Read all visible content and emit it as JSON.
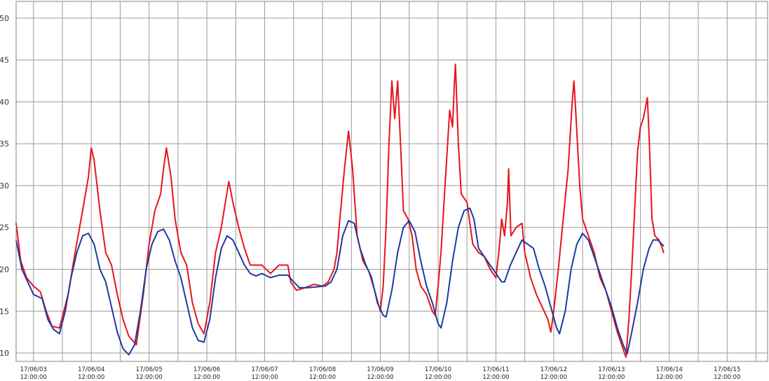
{
  "chart_data": {
    "type": "line",
    "title": "",
    "xlabel": "",
    "ylabel": "",
    "ylim": [
      9,
      52
    ],
    "grid": true,
    "y_ticks": [
      10,
      15,
      20,
      25,
      30,
      35,
      40,
      45,
      50
    ],
    "x_range": [
      -0.3,
      12.7
    ],
    "x_ticks": [
      {
        "date": "17/06/03",
        "time": "12:00:00"
      },
      {
        "date": "17/06/04",
        "time": "12:00:00"
      },
      {
        "date": "17/06/05",
        "time": "12:00:00"
      },
      {
        "date": "17/06/06",
        "time": "12:00:00"
      },
      {
        "date": "17/06/07",
        "time": "12:00:00"
      },
      {
        "date": "17/06/08",
        "time": "12:00:00"
      },
      {
        "date": "17/06/09",
        "time": "12:00:00"
      },
      {
        "date": "17/06/10",
        "time": "12:00:00"
      },
      {
        "date": "17/06/11",
        "time": "12:00:00"
      },
      {
        "date": "17/06/12",
        "time": "12:00:00"
      },
      {
        "date": "17/06/13",
        "time": "12:00:00"
      },
      {
        "date": "17/06/14",
        "time": "12:00:00"
      },
      {
        "date": "17/06/15",
        "time": "12:00:00"
      }
    ],
    "series": [
      {
        "name": "red",
        "color": "#e8141c",
        "points": [
          [
            -0.3,
            25.5
          ],
          [
            -0.22,
            21
          ],
          [
            -0.12,
            19
          ],
          [
            0.0,
            18
          ],
          [
            0.12,
            17.3
          ],
          [
            0.22,
            15
          ],
          [
            0.32,
            13.2
          ],
          [
            0.45,
            13
          ],
          [
            0.6,
            17
          ],
          [
            0.72,
            22
          ],
          [
            0.85,
            27
          ],
          [
            0.95,
            31
          ],
          [
            1.0,
            34.5
          ],
          [
            1.05,
            33
          ],
          [
            1.15,
            27
          ],
          [
            1.25,
            22
          ],
          [
            1.35,
            20.5
          ],
          [
            1.45,
            17
          ],
          [
            1.55,
            14
          ],
          [
            1.65,
            12
          ],
          [
            1.78,
            11
          ],
          [
            1.9,
            17
          ],
          [
            2.0,
            23
          ],
          [
            2.1,
            27
          ],
          [
            2.2,
            29
          ],
          [
            2.25,
            32
          ],
          [
            2.3,
            34.5
          ],
          [
            2.38,
            31
          ],
          [
            2.45,
            26
          ],
          [
            2.55,
            22
          ],
          [
            2.65,
            20.5
          ],
          [
            2.75,
            16
          ],
          [
            2.85,
            13.5
          ],
          [
            2.95,
            12.3
          ],
          [
            3.05,
            16
          ],
          [
            3.15,
            22
          ],
          [
            3.25,
            25
          ],
          [
            3.32,
            28
          ],
          [
            3.38,
            30.5
          ],
          [
            3.45,
            28
          ],
          [
            3.55,
            25
          ],
          [
            3.65,
            22.5
          ],
          [
            3.75,
            20.5
          ],
          [
            3.85,
            20.5
          ],
          [
            3.95,
            20.5
          ],
          [
            4.1,
            19.5
          ],
          [
            4.25,
            20.5
          ],
          [
            4.4,
            20.5
          ],
          [
            4.45,
            18.5
          ],
          [
            4.55,
            17.5
          ],
          [
            4.7,
            17.8
          ],
          [
            4.85,
            18.2
          ],
          [
            5.0,
            18
          ],
          [
            5.1,
            18.5
          ],
          [
            5.2,
            20
          ],
          [
            5.25,
            22
          ],
          [
            5.3,
            26
          ],
          [
            5.38,
            32
          ],
          [
            5.45,
            36.5
          ],
          [
            5.52,
            32
          ],
          [
            5.6,
            24
          ],
          [
            5.7,
            21
          ],
          [
            5.8,
            19.8
          ],
          [
            5.9,
            17.5
          ],
          [
            6.0,
            15
          ],
          [
            6.05,
            18
          ],
          [
            6.1,
            25
          ],
          [
            6.15,
            35
          ],
          [
            6.2,
            42.5
          ],
          [
            6.25,
            38
          ],
          [
            6.3,
            42.5
          ],
          [
            6.35,
            35
          ],
          [
            6.4,
            27
          ],
          [
            6.48,
            26
          ],
          [
            6.55,
            24
          ],
          [
            6.62,
            20
          ],
          [
            6.7,
            18
          ],
          [
            6.8,
            17
          ],
          [
            6.9,
            15
          ],
          [
            6.95,
            14.5
          ],
          [
            7.0,
            18
          ],
          [
            7.05,
            22
          ],
          [
            7.12,
            30
          ],
          [
            7.2,
            39
          ],
          [
            7.25,
            37
          ],
          [
            7.28,
            42
          ],
          [
            7.3,
            44.5
          ],
          [
            7.35,
            35
          ],
          [
            7.4,
            29
          ],
          [
            7.5,
            28
          ],
          [
            7.6,
            23
          ],
          [
            7.7,
            22
          ],
          [
            7.8,
            21.5
          ],
          [
            7.9,
            20
          ],
          [
            8.0,
            19
          ],
          [
            8.05,
            22
          ],
          [
            8.1,
            26
          ],
          [
            8.15,
            24
          ],
          [
            8.2,
            28
          ],
          [
            8.22,
            32
          ],
          [
            8.26,
            24
          ],
          [
            8.35,
            25
          ],
          [
            8.45,
            25.5
          ],
          [
            8.5,
            22
          ],
          [
            8.6,
            19
          ],
          [
            8.7,
            17
          ],
          [
            8.8,
            15.5
          ],
          [
            8.9,
            14
          ],
          [
            8.95,
            12.5
          ],
          [
            9.0,
            15
          ],
          [
            9.08,
            20
          ],
          [
            9.15,
            25
          ],
          [
            9.25,
            32
          ],
          [
            9.32,
            40
          ],
          [
            9.35,
            42.5
          ],
          [
            9.38,
            39
          ],
          [
            9.45,
            30
          ],
          [
            9.5,
            26
          ],
          [
            9.6,
            24
          ],
          [
            9.7,
            22
          ],
          [
            9.8,
            19
          ],
          [
            9.9,
            17.5
          ],
          [
            10.0,
            15
          ],
          [
            10.1,
            12.5
          ],
          [
            10.2,
            10.5
          ],
          [
            10.25,
            9.5
          ],
          [
            10.3,
            14
          ],
          [
            10.35,
            20
          ],
          [
            10.4,
            27
          ],
          [
            10.45,
            34
          ],
          [
            10.5,
            37
          ],
          [
            10.55,
            38
          ],
          [
            10.62,
            40.5
          ],
          [
            10.65,
            36
          ],
          [
            10.7,
            26
          ],
          [
            10.75,
            24
          ],
          [
            10.82,
            23.5
          ],
          [
            10.88,
            22.5
          ],
          [
            10.9,
            22
          ]
        ]
      },
      {
        "name": "blue",
        "color": "#1e3a9e",
        "points": [
          [
            -0.3,
            23.5
          ],
          [
            -0.2,
            20
          ],
          [
            -0.1,
            18.5
          ],
          [
            0.0,
            17
          ],
          [
            0.15,
            16.5
          ],
          [
            0.25,
            14
          ],
          [
            0.35,
            12.8
          ],
          [
            0.45,
            12.3
          ],
          [
            0.55,
            15
          ],
          [
            0.65,
            19
          ],
          [
            0.75,
            22
          ],
          [
            0.85,
            24
          ],
          [
            0.95,
            24.3
          ],
          [
            1.05,
            23
          ],
          [
            1.15,
            20
          ],
          [
            1.25,
            18.5
          ],
          [
            1.35,
            15.5
          ],
          [
            1.45,
            12.5
          ],
          [
            1.55,
            10.5
          ],
          [
            1.65,
            9.8
          ],
          [
            1.75,
            11
          ],
          [
            1.85,
            15
          ],
          [
            1.95,
            20
          ],
          [
            2.05,
            23
          ],
          [
            2.15,
            24.5
          ],
          [
            2.25,
            24.8
          ],
          [
            2.35,
            23.5
          ],
          [
            2.45,
            21
          ],
          [
            2.55,
            19
          ],
          [
            2.65,
            16
          ],
          [
            2.75,
            13
          ],
          [
            2.85,
            11.5
          ],
          [
            2.95,
            11.3
          ],
          [
            3.05,
            14
          ],
          [
            3.15,
            19
          ],
          [
            3.25,
            22.5
          ],
          [
            3.35,
            24
          ],
          [
            3.45,
            23.5
          ],
          [
            3.55,
            22
          ],
          [
            3.65,
            20.5
          ],
          [
            3.75,
            19.5
          ],
          [
            3.85,
            19.2
          ],
          [
            3.95,
            19.5
          ],
          [
            4.1,
            19
          ],
          [
            4.25,
            19.3
          ],
          [
            4.4,
            19.3
          ],
          [
            4.5,
            18.5
          ],
          [
            4.6,
            17.8
          ],
          [
            4.75,
            17.8
          ],
          [
            4.9,
            17.9
          ],
          [
            5.05,
            18
          ],
          [
            5.15,
            18.5
          ],
          [
            5.25,
            20
          ],
          [
            5.35,
            24
          ],
          [
            5.45,
            25.8
          ],
          [
            5.55,
            25.5
          ],
          [
            5.65,
            22.5
          ],
          [
            5.75,
            20.5
          ],
          [
            5.85,
            19
          ],
          [
            5.95,
            16
          ],
          [
            6.05,
            14.5
          ],
          [
            6.1,
            14.3
          ],
          [
            6.2,
            17.5
          ],
          [
            6.3,
            22
          ],
          [
            6.4,
            25
          ],
          [
            6.5,
            25.8
          ],
          [
            6.6,
            24.5
          ],
          [
            6.7,
            21
          ],
          [
            6.8,
            18
          ],
          [
            6.9,
            16
          ],
          [
            7.0,
            13.5
          ],
          [
            7.05,
            13
          ],
          [
            7.15,
            16
          ],
          [
            7.25,
            21
          ],
          [
            7.35,
            25
          ],
          [
            7.45,
            27
          ],
          [
            7.55,
            27.3
          ],
          [
            7.62,
            26
          ],
          [
            7.7,
            22.5
          ],
          [
            7.8,
            21.5
          ],
          [
            7.9,
            20.5
          ],
          [
            8.0,
            19.5
          ],
          [
            8.1,
            18.5
          ],
          [
            8.15,
            18.5
          ],
          [
            8.25,
            20.5
          ],
          [
            8.35,
            22
          ],
          [
            8.45,
            23.5
          ],
          [
            8.55,
            23
          ],
          [
            8.65,
            22.5
          ],
          [
            8.75,
            20
          ],
          [
            8.85,
            18
          ],
          [
            8.95,
            15.5
          ],
          [
            9.05,
            13
          ],
          [
            9.1,
            12.3
          ],
          [
            9.2,
            15
          ],
          [
            9.3,
            20
          ],
          [
            9.4,
            23
          ],
          [
            9.5,
            24.3
          ],
          [
            9.6,
            23.5
          ],
          [
            9.7,
            21.5
          ],
          [
            9.8,
            19.5
          ],
          [
            9.9,
            17.5
          ],
          [
            10.0,
            15.5
          ],
          [
            10.1,
            13
          ],
          [
            10.2,
            11
          ],
          [
            10.27,
            9.9
          ],
          [
            10.35,
            12.5
          ],
          [
            10.45,
            16
          ],
          [
            10.55,
            20
          ],
          [
            10.65,
            22.5
          ],
          [
            10.72,
            23.5
          ],
          [
            10.8,
            23.5
          ],
          [
            10.9,
            22.8
          ]
        ]
      }
    ]
  }
}
